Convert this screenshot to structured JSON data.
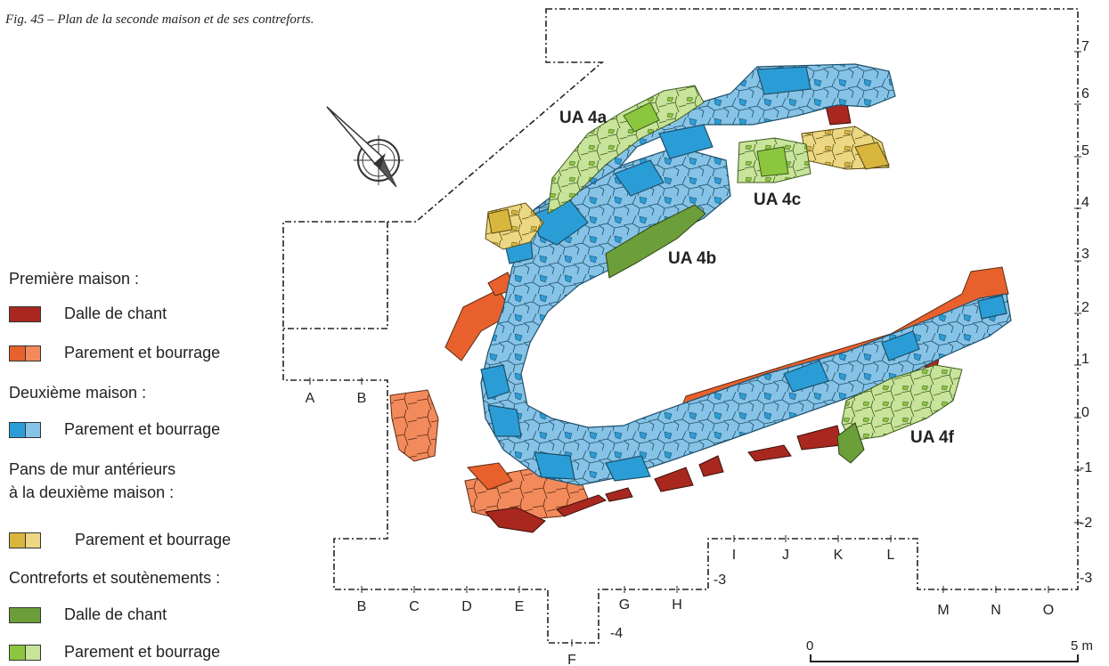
{
  "caption": "Fig. 45 – Plan de la seconde maison et de ses contreforts.",
  "colors": {
    "first_house_slab": "#a8281f",
    "first_house_face": "#e8612c",
    "first_house_fill": "#f28a5c",
    "second_house_face": "#2b9dd6",
    "second_house_fill": "#86c3e6",
    "earlier_face": "#d8b63e",
    "earlier_fill": "#ecd782",
    "buttress_slab": "#6c9e3a",
    "buttress_face": "#8cc63f",
    "buttress_fill": "#c8e39a"
  },
  "unit_labels": {
    "ua4a": "UA 4a",
    "ua4b": "UA 4b",
    "ua4c": "UA 4c",
    "ua4f": "UA 4f"
  },
  "legend": {
    "first_house": {
      "heading": "Première maison :",
      "slab": "Dalle de chant",
      "face_fill": "Parement et bourrage"
    },
    "second_house": {
      "heading": "Deuxième maison :",
      "face_fill": "Parement et bourrage"
    },
    "earlier_walls": {
      "heading_1": "Pans de mur antérieurs",
      "heading_2": "à la deuxième maison :",
      "face_fill": "Parement et bourrage"
    },
    "buttresses": {
      "heading": "Contreforts et soutènements :",
      "slab": "Dalle de chant",
      "face_fill": "Parement et bourrage"
    }
  },
  "grid": {
    "row_labels": [
      "7",
      "6",
      "5",
      "4",
      "3",
      "2",
      "1",
      "0",
      "-1",
      "-2",
      "-3"
    ],
    "left_step_labels": [
      "A",
      "B"
    ],
    "bottom_labels_left": [
      "B",
      "C",
      "D",
      "E"
    ],
    "label_f": "F",
    "label_minus4": "-4",
    "labels_gh": [
      "G",
      "H"
    ],
    "label_minus3": "-3",
    "labels_ijkl": [
      "I",
      "J",
      "K",
      "L"
    ],
    "labels_mno": [
      "M",
      "N",
      "O"
    ]
  },
  "scale": {
    "start": "0",
    "end": "5 m"
  }
}
